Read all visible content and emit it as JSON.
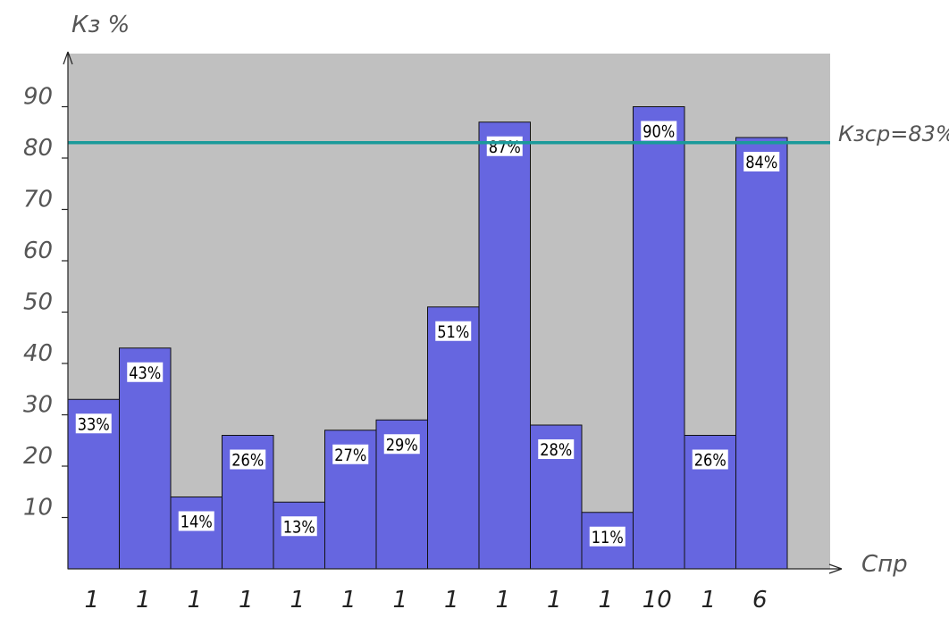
{
  "chart_data": {
    "type": "bar",
    "ylabel": "Кз %",
    "xlabel": "Спр",
    "ylim": [
      0,
      100
    ],
    "yticks": [
      10,
      20,
      30,
      40,
      50,
      60,
      70,
      80,
      90
    ],
    "grid": false,
    "categories": [
      "1",
      "1",
      "1",
      "1",
      "1",
      "1",
      "1",
      "1",
      "1",
      "1",
      "1",
      "10",
      "1",
      "6"
    ],
    "values": [
      33,
      43,
      14,
      26,
      13,
      27,
      29,
      51,
      87,
      28,
      11,
      90,
      26,
      84
    ],
    "data_labels": [
      "33%",
      "43%",
      "14%",
      "26%",
      "13%",
      "27%",
      "29%",
      "51%",
      "87%",
      "28%",
      "11%",
      "90%",
      "26%",
      "84%"
    ],
    "reference_line": {
      "value": 83,
      "label": "Кзср=83%",
      "color": "#1a9a9a"
    },
    "colors": {
      "bar": "#6666e0",
      "plot_background": "#c0c0c0",
      "label_box": "#ffffff"
    }
  }
}
